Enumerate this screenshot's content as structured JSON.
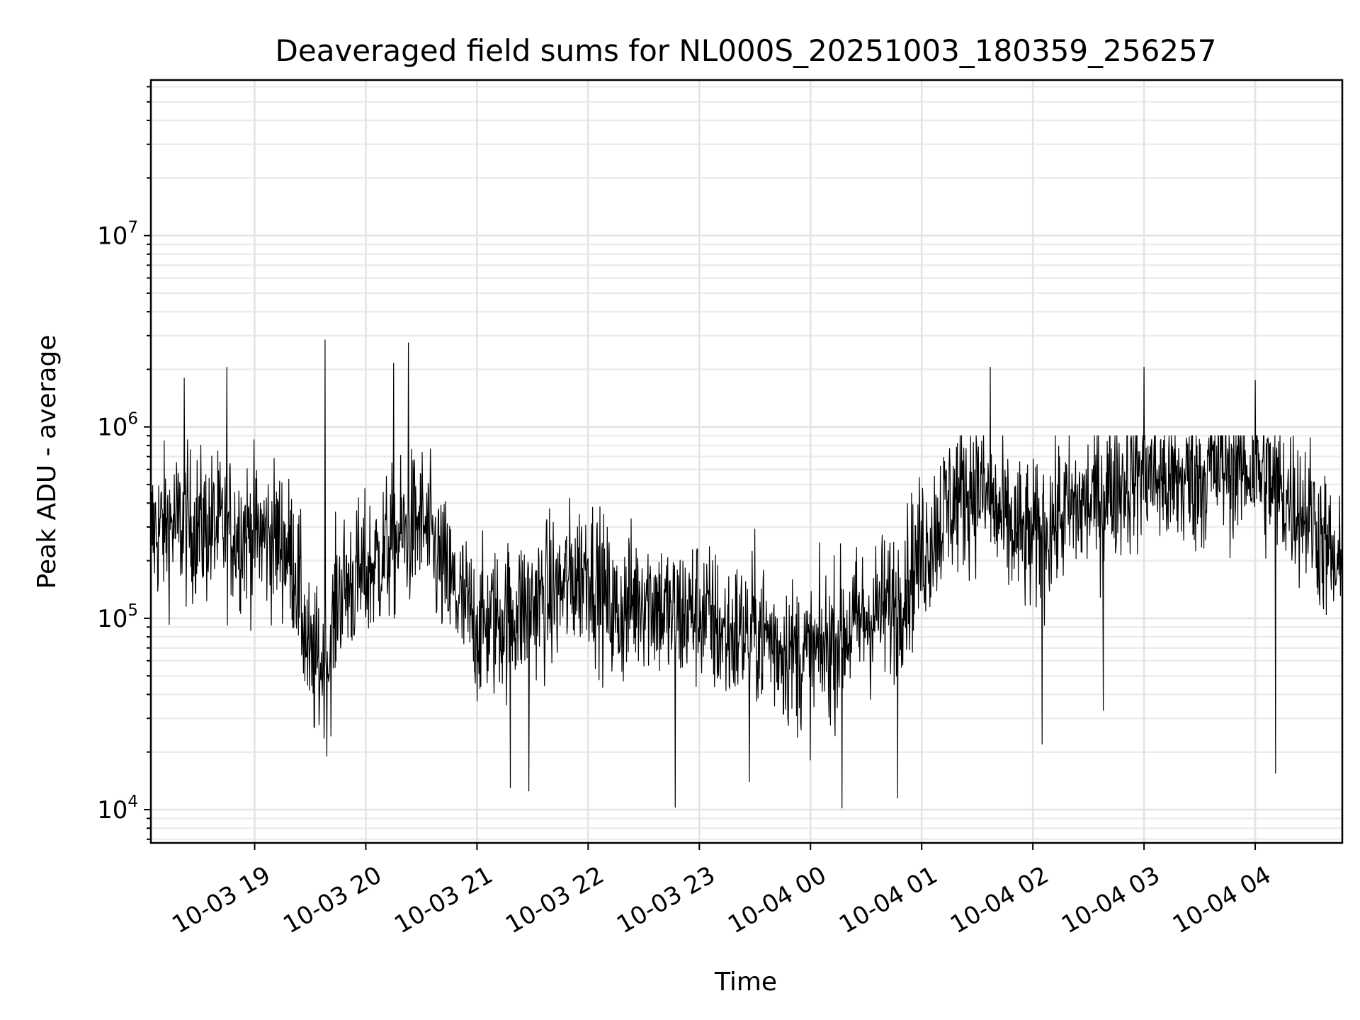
{
  "chart_data": {
    "type": "line",
    "title": "Deaveraged field sums for NL000S_20251003_180359_256257",
    "xlabel": "Time",
    "ylabel": "Peak ADU - average",
    "yscale": "log",
    "ylim": [
      6700,
      65000000
    ],
    "xlim": [
      "2025-10-03 18:04",
      "2025-10-04 04:47"
    ],
    "x_ticks": [
      "2025-10-03 19:00",
      "2025-10-03 20:00",
      "2025-10-03 21:00",
      "2025-10-03 22:00",
      "2025-10-03 23:00",
      "2025-10-04 00:00",
      "2025-10-04 01:00",
      "2025-10-04 02:00",
      "2025-10-04 03:00",
      "2025-10-04 04:00"
    ],
    "x_tick_labels": [
      "10-03 19",
      "10-03 20",
      "10-03 21",
      "10-03 22",
      "10-03 23",
      "10-04 00",
      "10-04 01",
      "10-04 02",
      "10-04 03",
      "10-04 04"
    ],
    "y_ticks": [
      10000,
      100000,
      1000000,
      10000000
    ],
    "y_tick_labels": [
      {
        "base": "10",
        "exp": "4"
      },
      {
        "base": "10",
        "exp": "5"
      },
      {
        "base": "10",
        "exp": "6"
      },
      {
        "base": "10",
        "exp": "7"
      }
    ],
    "grid": true,
    "series_color": "#000000",
    "series": [
      {
        "name": "",
        "x": [
          "2025-10-03 18:04",
          "2025-10-03 18:15",
          "2025-10-03 18:30",
          "2025-10-03 18:45",
          "2025-10-03 19:00",
          "2025-10-03 19:15",
          "2025-10-03 19:22",
          "2025-10-03 19:30",
          "2025-10-03 19:40",
          "2025-10-03 19:45",
          "2025-10-03 20:00",
          "2025-10-03 20:15",
          "2025-10-03 20:30",
          "2025-10-03 20:45",
          "2025-10-03 21:00",
          "2025-10-03 21:15",
          "2025-10-03 21:30",
          "2025-10-03 21:45",
          "2025-10-03 22:00",
          "2025-10-03 22:15",
          "2025-10-03 22:30",
          "2025-10-03 22:45",
          "2025-10-03 23:00",
          "2025-10-03 23:15",
          "2025-10-03 23:30",
          "2025-10-03 23:45",
          "2025-10-04 00:00",
          "2025-10-04 00:15",
          "2025-10-04 00:30",
          "2025-10-04 00:45",
          "2025-10-04 01:00",
          "2025-10-04 01:15",
          "2025-10-04 01:30",
          "2025-10-04 01:45",
          "2025-10-04 02:00",
          "2025-10-04 02:15",
          "2025-10-04 02:30",
          "2025-10-04 02:45",
          "2025-10-04 03:00",
          "2025-10-04 03:15",
          "2025-10-04 03:30",
          "2025-10-04 03:45",
          "2025-10-04 04:00",
          "2025-10-04 04:15",
          "2025-10-04 04:30",
          "2025-10-04 04:47"
        ],
        "values": [
          280000,
          310000,
          300000,
          290000,
          280000,
          250000,
          190000,
          55000,
          60000,
          140000,
          170000,
          250000,
          320000,
          150000,
          90000,
          100000,
          120000,
          140000,
          190000,
          100000,
          140000,
          100000,
          110000,
          80000,
          90000,
          70000,
          60000,
          80000,
          100000,
          120000,
          220000,
          400000,
          500000,
          300000,
          250000,
          350000,
          400000,
          500000,
          600000,
          500000,
          550000,
          650000,
          600000,
          450000,
          350000,
          150000
        ],
        "peaks": [
          {
            "x": "2025-10-03 18:22",
            "value": 1800000
          },
          {
            "x": "2025-10-03 18:45",
            "value": 2050000
          },
          {
            "x": "2025-10-03 19:38",
            "value": 2850000
          },
          {
            "x": "2025-10-03 20:15",
            "value": 2150000
          },
          {
            "x": "2025-10-03 20:23",
            "value": 2750000
          },
          {
            "x": "2025-10-04 01:37",
            "value": 2050000
          },
          {
            "x": "2025-10-04 03:00",
            "value": 2050000
          },
          {
            "x": "2025-10-04 04:00",
            "value": 1750000
          }
        ],
        "troughs": [
          {
            "x": "2025-10-03 21:18",
            "value": 13000
          },
          {
            "x": "2025-10-03 21:28",
            "value": 12500
          },
          {
            "x": "2025-10-03 22:47",
            "value": 10300
          },
          {
            "x": "2025-10-03 23:27",
            "value": 14000
          },
          {
            "x": "2025-10-04 00:17",
            "value": 10200
          },
          {
            "x": "2025-10-04 00:47",
            "value": 11500
          },
          {
            "x": "2025-10-04 02:05",
            "value": 22000
          },
          {
            "x": "2025-10-04 02:38",
            "value": 33000
          },
          {
            "x": "2025-10-04 04:11",
            "value": 15500
          }
        ]
      }
    ]
  }
}
